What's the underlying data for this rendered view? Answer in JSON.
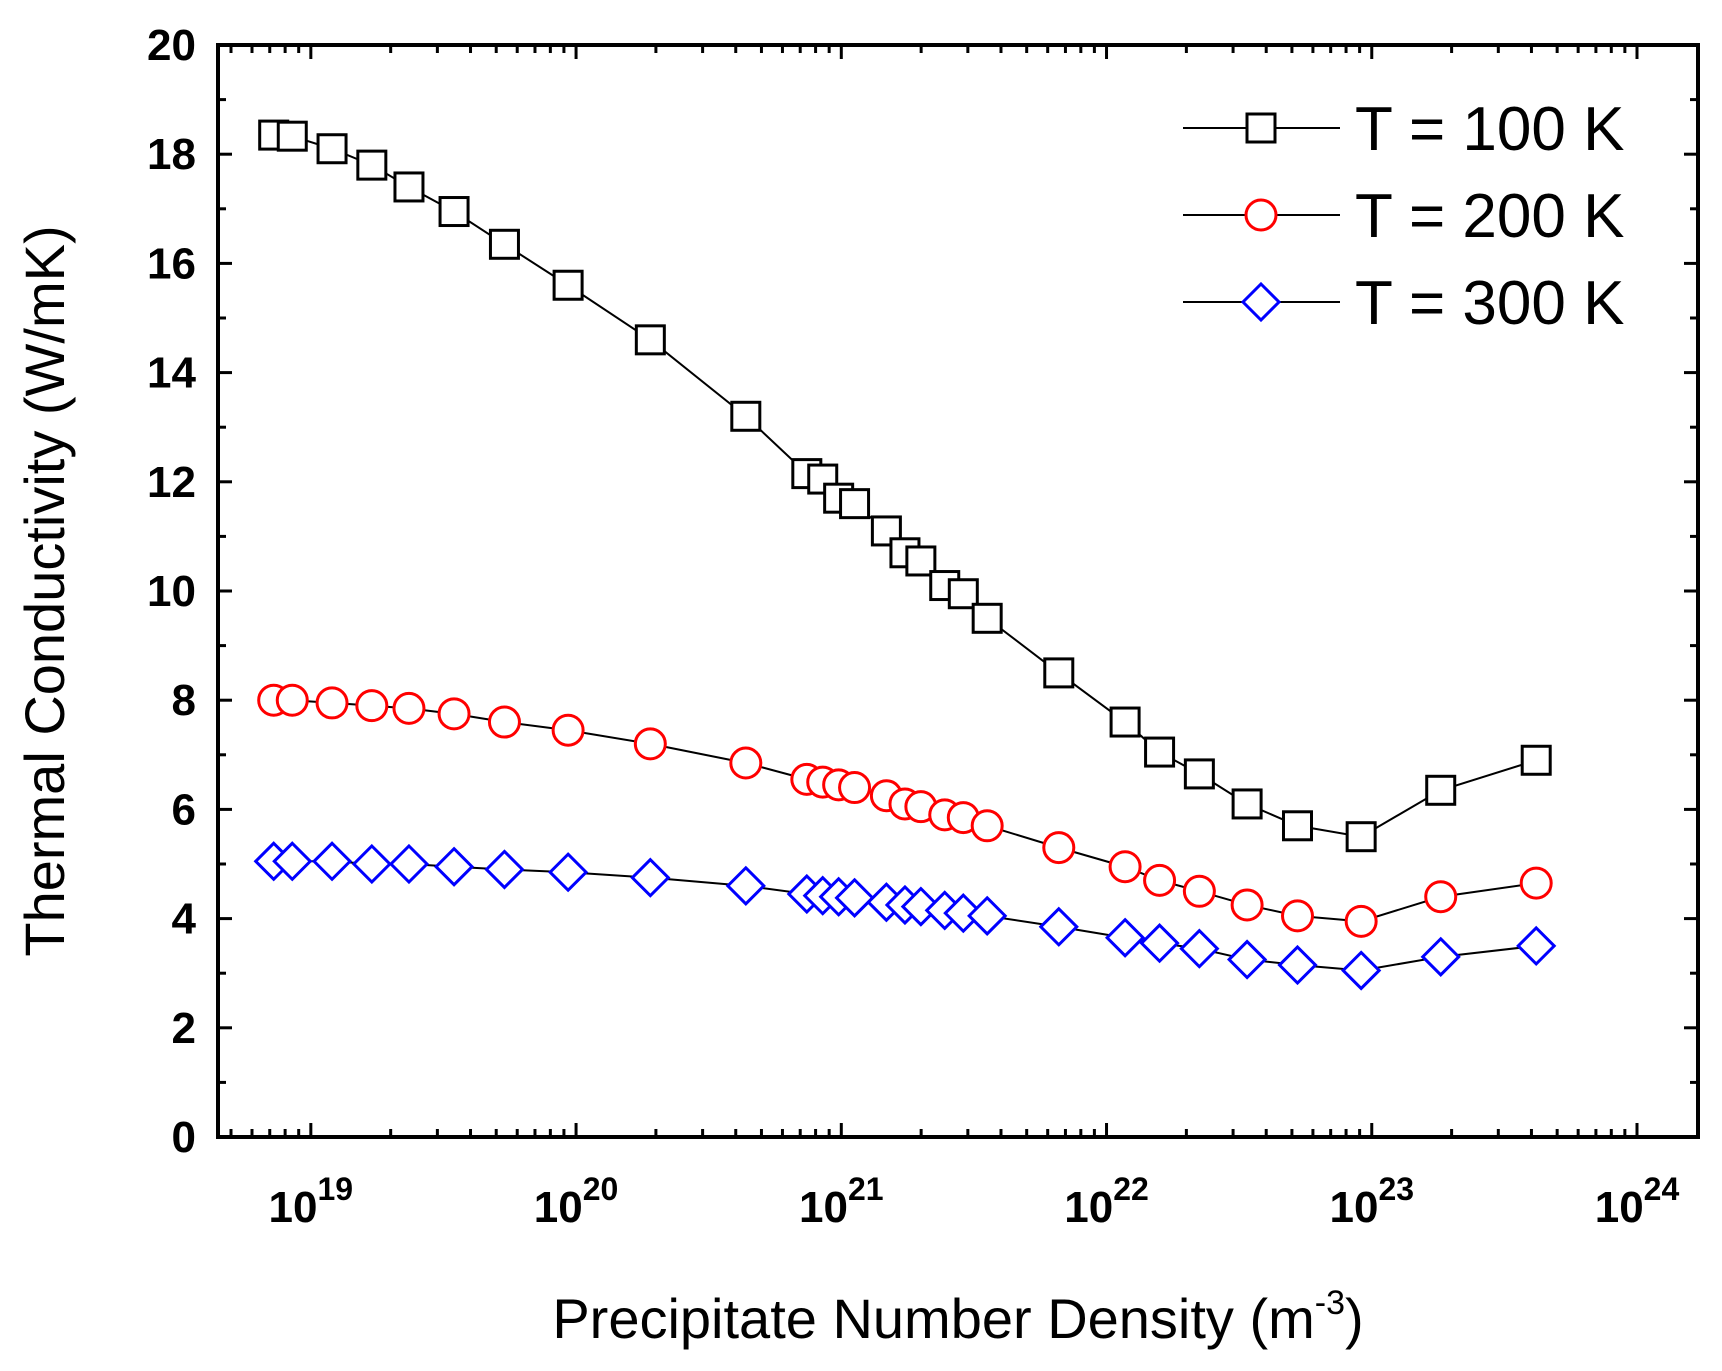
{
  "chart_data": {
    "type": "line",
    "title": "",
    "xlabel": "Precipitate Number Density (m-3)",
    "xlabel_parts": {
      "base": "Precipitate Number Density (m",
      "sup": "-3",
      "close": ")"
    },
    "ylabel": "Thermal Conductivity (W/mK)",
    "x_scale": "log",
    "xlim_exp": [
      18.65,
      24.23
    ],
    "ylim": [
      0,
      20
    ],
    "grid": false,
    "legend_position": "top-right",
    "y_ticks": [
      0,
      2,
      4,
      6,
      8,
      10,
      12,
      14,
      16,
      18,
      20
    ],
    "y_tick_labels": [
      "0",
      "2",
      "4",
      "6",
      "8",
      "10",
      "12",
      "14",
      "16",
      "18",
      "20"
    ],
    "x_ticks_exp": [
      19,
      20,
      21,
      22,
      23,
      24
    ],
    "x_tick_labels": [
      {
        "base": "10",
        "exp": "19"
      },
      {
        "base": "10",
        "exp": "20"
      },
      {
        "base": "10",
        "exp": "21"
      },
      {
        "base": "10",
        "exp": "22"
      },
      {
        "base": "10",
        "exp": "23"
      },
      {
        "base": "10",
        "exp": "24"
      }
    ],
    "x_exp": [
      18.86,
      18.93,
      19.08,
      19.23,
      19.37,
      19.54,
      19.73,
      19.97,
      20.28,
      20.64,
      20.87,
      20.93,
      20.99,
      21.05,
      21.17,
      21.24,
      21.3,
      21.39,
      21.46,
      21.55,
      21.82,
      22.07,
      22.2,
      22.35,
      22.53,
      22.72,
      22.96,
      23.26,
      23.62
    ],
    "series": [
      {
        "name": "T = 100 K",
        "marker": "square",
        "color": "#000000",
        "values": [
          18.35,
          18.33,
          18.1,
          17.8,
          17.4,
          16.95,
          16.35,
          15.6,
          14.6,
          13.2,
          12.15,
          12.05,
          11.7,
          11.6,
          11.1,
          10.7,
          10.55,
          10.1,
          9.95,
          9.5,
          8.5,
          7.6,
          7.05,
          6.65,
          6.1,
          5.7,
          5.5,
          6.35,
          6.9
        ]
      },
      {
        "name": "T = 200 K",
        "marker": "circle",
        "color": "#ff0000",
        "values": [
          8.0,
          8.0,
          7.95,
          7.9,
          7.85,
          7.75,
          7.6,
          7.45,
          7.2,
          6.85,
          6.55,
          6.5,
          6.45,
          6.4,
          6.25,
          6.1,
          6.05,
          5.9,
          5.85,
          5.7,
          5.3,
          4.95,
          4.7,
          4.5,
          4.25,
          4.05,
          3.95,
          4.4,
          4.65
        ]
      },
      {
        "name": "T = 300 K",
        "marker": "diamond",
        "color": "#0000ff",
        "values": [
          5.05,
          5.05,
          5.05,
          5.0,
          5.0,
          4.95,
          4.9,
          4.85,
          4.75,
          4.6,
          4.45,
          4.42,
          4.4,
          4.38,
          4.3,
          4.25,
          4.22,
          4.15,
          4.1,
          4.05,
          3.85,
          3.65,
          3.55,
          3.45,
          3.25,
          3.15,
          3.05,
          3.3,
          3.5
        ]
      }
    ]
  },
  "colors": {
    "axis": "#000000",
    "background": "#ffffff"
  }
}
